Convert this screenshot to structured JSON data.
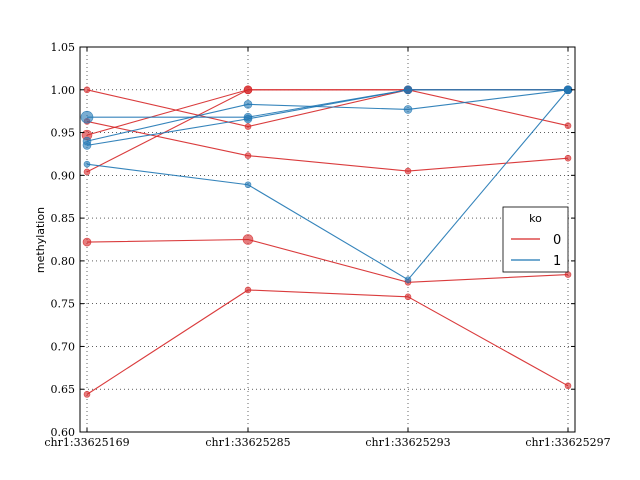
{
  "chart_data": {
    "type": "line",
    "ylabel": "methylation",
    "categories": [
      "chr1:33625169",
      "chr1:33625285",
      "chr1:33625293",
      "chr1:33625297"
    ],
    "ylim": [
      0.6,
      1.05
    ],
    "yticks": [
      "0.60",
      "0.65",
      "0.70",
      "0.75",
      "0.80",
      "0.85",
      "0.90",
      "0.95",
      "1.00",
      "1.05"
    ],
    "grid": true,
    "legend": {
      "title": "ko",
      "placement": "center-right",
      "entries": [
        {
          "label": "0",
          "color": "#d62728"
        },
        {
          "label": "1",
          "color": "#1f77b4"
        }
      ]
    },
    "series": [
      {
        "group": "0",
        "color": "#d62728",
        "values": [
          1.0,
          0.957,
          1.0,
          0.958
        ],
        "sizes": [
          3,
          3,
          3,
          3
        ]
      },
      {
        "group": "0",
        "color": "#d62728",
        "values": [
          0.963,
          0.923,
          0.905,
          0.92
        ],
        "sizes": [
          3,
          3,
          3,
          3
        ]
      },
      {
        "group": "0",
        "color": "#d62728",
        "values": [
          0.947,
          1.0,
          1.0,
          1.0
        ],
        "sizes": [
          5,
          4,
          4,
          4
        ]
      },
      {
        "group": "0",
        "color": "#d62728",
        "values": [
          0.904,
          1.0,
          1.0,
          1.0
        ],
        "sizes": [
          3,
          4,
          4,
          4
        ]
      },
      {
        "group": "0",
        "color": "#d62728",
        "values": [
          0.822,
          0.825,
          0.775,
          0.784
        ],
        "sizes": [
          4,
          5,
          3,
          3
        ]
      },
      {
        "group": "0",
        "color": "#d62728",
        "values": [
          0.644,
          0.766,
          0.758,
          0.654
        ],
        "sizes": [
          3,
          3,
          3,
          3
        ]
      },
      {
        "group": "1",
        "color": "#1f77b4",
        "values": [
          0.968,
          0.968,
          1.0,
          1.0
        ],
        "sizes": [
          6,
          4,
          4,
          4
        ]
      },
      {
        "group": "1",
        "color": "#1f77b4",
        "values": [
          0.94,
          0.983,
          0.977,
          1.0
        ],
        "sizes": [
          4,
          4,
          4,
          4
        ]
      },
      {
        "group": "1",
        "color": "#1f77b4",
        "values": [
          0.935,
          0.966,
          1.0,
          1.0
        ],
        "sizes": [
          4,
          4,
          4,
          4
        ]
      },
      {
        "group": "1",
        "color": "#1f77b4",
        "values": [
          0.913,
          0.889,
          0.778,
          1.0
        ],
        "sizes": [
          3,
          3,
          3,
          3
        ]
      }
    ]
  }
}
